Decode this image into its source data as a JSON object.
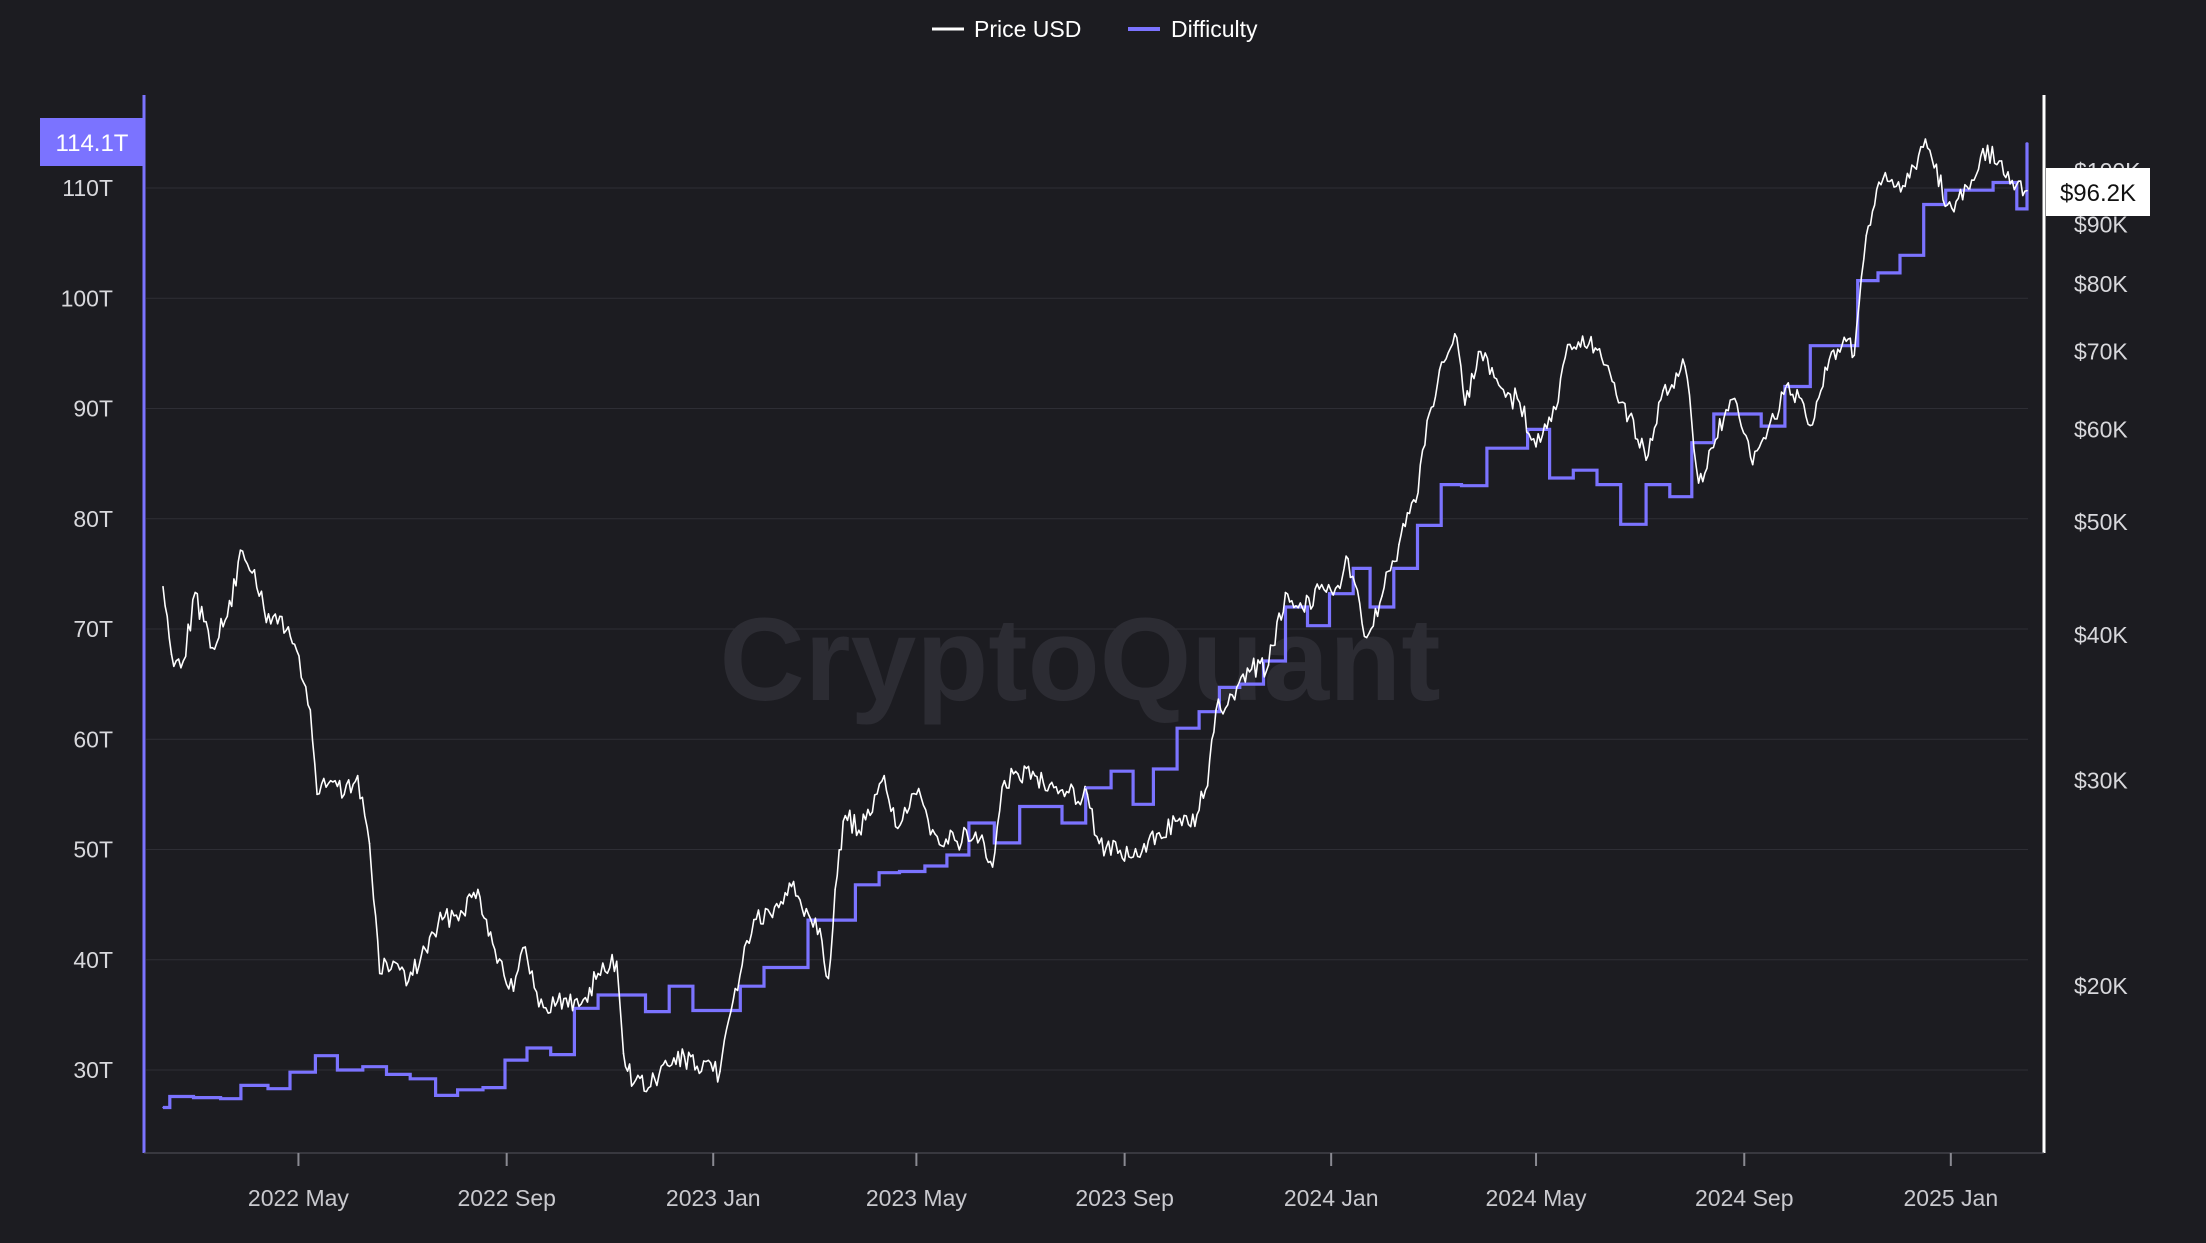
{
  "legend": {
    "price_label": "Price USD",
    "difficulty_label": "Difficulty"
  },
  "watermark": "CryptoQuant",
  "colors": {
    "background": "#1c1c21",
    "price_line": "#ffffff",
    "difficulty_line": "#7b73ff",
    "grid": "#2e2e35",
    "left_axis": "#7b73ff",
    "right_axis": "#ffffff"
  },
  "current_values": {
    "difficulty": "114.1T",
    "price": "$96.2K"
  },
  "chart_data": {
    "type": "line",
    "title": "",
    "legend_position": "top-center",
    "grid": true,
    "x_axis": {
      "type": "date",
      "range": [
        "2022-02-10",
        "2025-02-15"
      ],
      "tick_labels": [
        "2022 May",
        "2022 Sep",
        "2023 Jan",
        "2023 May",
        "2023 Sep",
        "2024 Jan",
        "2024 May",
        "2024 Sep",
        "2025 Jan"
      ],
      "tick_dates": [
        "2022-05-01",
        "2022-09-01",
        "2023-01-01",
        "2023-05-01",
        "2023-09-01",
        "2024-01-01",
        "2024-05-01",
        "2024-09-01",
        "2025-01-01"
      ]
    },
    "y_left": {
      "label": "",
      "unit": "T",
      "range": [
        22,
        114.1
      ],
      "tick_labels": [
        "30T",
        "40T",
        "50T",
        "60T",
        "70T",
        "80T",
        "90T",
        "100T",
        "110T"
      ],
      "tick_values": [
        30,
        40,
        50,
        60,
        70,
        80,
        90,
        100,
        110
      ]
    },
    "y_right": {
      "label": "",
      "scale": "log",
      "range": [
        15400,
        110000
      ],
      "tick_labels": [
        "$20K",
        "$30K",
        "$40K",
        "$50K",
        "$60K",
        "$70K",
        "$80K",
        "$90K",
        "$100K"
      ],
      "tick_values": [
        20000,
        30000,
        40000,
        50000,
        60000,
        70000,
        80000,
        90000,
        100000
      ]
    },
    "series": [
      {
        "name": "Price USD",
        "axis": "right",
        "x": [
          "2022-02-10",
          "2022-02-15",
          "2022-02-22",
          "2022-03-01",
          "2022-03-10",
          "2022-03-20",
          "2022-03-29",
          "2022-04-05",
          "2022-04-12",
          "2022-04-20",
          "2022-04-30",
          "2022-05-08",
          "2022-05-12",
          "2022-05-20",
          "2022-05-28",
          "2022-06-05",
          "2022-06-12",
          "2022-06-18",
          "2022-06-26",
          "2022-07-05",
          "2022-07-15",
          "2022-07-25",
          "2022-08-05",
          "2022-08-15",
          "2022-08-25",
          "2022-09-05",
          "2022-09-12",
          "2022-09-20",
          "2022-10-01",
          "2022-10-15",
          "2022-10-25",
          "2022-11-05",
          "2022-11-09",
          "2022-11-15",
          "2022-11-25",
          "2022-12-05",
          "2022-12-15",
          "2022-12-25",
          "2023-01-05",
          "2023-01-14",
          "2023-01-25",
          "2023-02-05",
          "2023-02-15",
          "2023-02-25",
          "2023-03-05",
          "2023-03-10",
          "2023-03-14",
          "2023-03-20",
          "2023-03-28",
          "2023-04-05",
          "2023-04-12",
          "2023-04-20",
          "2023-05-01",
          "2023-05-12",
          "2023-05-25",
          "2023-06-05",
          "2023-06-15",
          "2023-06-22",
          "2023-06-30",
          "2023-07-10",
          "2023-07-20",
          "2023-07-30",
          "2023-08-10",
          "2023-08-17",
          "2023-08-28",
          "2023-09-10",
          "2023-09-20",
          "2023-10-01",
          "2023-10-10",
          "2023-10-20",
          "2023-10-25",
          "2023-11-05",
          "2023-11-15",
          "2023-11-25",
          "2023-12-05",
          "2023-12-15",
          "2023-12-25",
          "2024-01-05",
          "2024-01-11",
          "2024-01-22",
          "2024-01-31",
          "2024-02-10",
          "2024-02-20",
          "2024-02-28",
          "2024-03-05",
          "2024-03-14",
          "2024-03-20",
          "2024-03-28",
          "2024-04-05",
          "2024-04-13",
          "2024-04-20",
          "2024-05-01",
          "2024-05-10",
          "2024-05-21",
          "2024-06-05",
          "2024-06-15",
          "2024-06-25",
          "2024-07-05",
          "2024-07-15",
          "2024-07-28",
          "2024-08-05",
          "2024-08-15",
          "2024-08-25",
          "2024-09-06",
          "2024-09-15",
          "2024-09-27",
          "2024-10-10",
          "2024-10-20",
          "2024-10-30",
          "2024-11-05",
          "2024-11-12",
          "2024-11-22",
          "2024-12-05",
          "2024-12-17",
          "2024-12-30",
          "2025-01-08",
          "2025-01-20",
          "2025-01-31",
          "2025-02-05",
          "2025-02-10",
          "2025-02-15"
        ],
        "values": [
          44000,
          38500,
          38000,
          43500,
          39000,
          41500,
          47200,
          45500,
          41000,
          41500,
          38800,
          34500,
          29200,
          30000,
          29200,
          30300,
          26500,
          20500,
          21000,
          20200,
          21500,
          22800,
          23200,
          24200,
          21500,
          19800,
          21600,
          19200,
          19400,
          19300,
          20500,
          21000,
          17500,
          16500,
          16400,
          17100,
          17400,
          16900,
          16900,
          19900,
          22800,
          22900,
          24500,
          23300,
          22400,
          20300,
          24200,
          28000,
          27200,
          28200,
          30300,
          27300,
          29200,
          27000,
          26600,
          27100,
          25300,
          30000,
          30400,
          30300,
          29900,
          29300,
          29200,
          26500,
          26000,
          25800,
          27000,
          27700,
          27400,
          29700,
          34500,
          35200,
          37400,
          37700,
          43500,
          42200,
          43800,
          44100,
          46500,
          39800,
          43200,
          47800,
          52000,
          62000,
          67500,
          72500,
          63000,
          70000,
          67800,
          64000,
          63800,
          58000,
          61000,
          71000,
          70500,
          66000,
          61600,
          56500,
          64800,
          68000,
          54000,
          58800,
          63700,
          56000,
          60000,
          65800,
          60500,
          67500,
          72000,
          69500,
          88000,
          98500,
          97000,
          106500,
          93500,
          94500,
          104500,
          102000,
          97500,
          98000,
          96200
        ]
      },
      {
        "name": "Difficulty",
        "axis": "left",
        "x": [
          "2022-02-10",
          "2022-02-14",
          "2022-02-28",
          "2022-03-16",
          "2022-03-28",
          "2022-04-13",
          "2022-04-26",
          "2022-05-11",
          "2022-05-24",
          "2022-06-08",
          "2022-06-22",
          "2022-07-06",
          "2022-07-21",
          "2022-08-03",
          "2022-08-18",
          "2022-08-31",
          "2022-09-13",
          "2022-09-27",
          "2022-10-11",
          "2022-10-25",
          "2022-11-08",
          "2022-11-22",
          "2022-12-06",
          "2022-12-20",
          "2023-01-03",
          "2023-01-17",
          "2023-01-31",
          "2023-02-14",
          "2023-02-26",
          "2023-03-12",
          "2023-03-26",
          "2023-04-09",
          "2023-04-21",
          "2023-05-06",
          "2023-05-19",
          "2023-06-01",
          "2023-06-16",
          "2023-07-01",
          "2023-07-12",
          "2023-07-26",
          "2023-08-09",
          "2023-08-24",
          "2023-09-06",
          "2023-09-18",
          "2023-10-02",
          "2023-10-15",
          "2023-10-27",
          "2023-11-08",
          "2023-11-22",
          "2023-12-05",
          "2023-12-18",
          "2023-12-31",
          "2024-01-14",
          "2024-01-24",
          "2024-02-07",
          "2024-02-21",
          "2024-03-06",
          "2024-03-18",
          "2024-04-02",
          "2024-04-13",
          "2024-04-26",
          "2024-05-09",
          "2024-05-23",
          "2024-06-06",
          "2024-06-20",
          "2024-07-05",
          "2024-07-19",
          "2024-08-01",
          "2024-08-14",
          "2024-08-28",
          "2024-09-11",
          "2024-09-25",
          "2024-10-10",
          "2024-10-24",
          "2024-11-07",
          "2024-11-19",
          "2024-12-02",
          "2024-12-16",
          "2024-12-29",
          "2025-01-12",
          "2025-01-26",
          "2025-02-09",
          "2025-02-15"
        ],
        "values": [
          26.6,
          27.6,
          27.5,
          27.4,
          28.6,
          28.3,
          29.8,
          31.3,
          30.0,
          30.3,
          29.6,
          29.2,
          27.7,
          28.2,
          28.4,
          30.9,
          32.0,
          31.4,
          35.6,
          36.8,
          36.8,
          35.3,
          37.6,
          35.4,
          35.4,
          37.6,
          39.3,
          39.3,
          43.6,
          43.6,
          46.8,
          47.9,
          48.0,
          48.5,
          49.5,
          52.4,
          50.6,
          53.9,
          53.9,
          52.4,
          55.6,
          57.1,
          54.1,
          57.3,
          61.0,
          62.5,
          64.7,
          65.0,
          67.1,
          72.0,
          70.3,
          73.2,
          75.5,
          72.0,
          75.5,
          79.4,
          83.1,
          83.0,
          86.4,
          86.4,
          88.1,
          83.7,
          84.4,
          83.1,
          79.5,
          83.1,
          82.0,
          86.9,
          89.5,
          89.5,
          88.4,
          92.0,
          95.7,
          95.7,
          101.6,
          102.3,
          103.9,
          108.5,
          109.8,
          109.8,
          110.5,
          108.1,
          114.1
        ]
      }
    ]
  }
}
